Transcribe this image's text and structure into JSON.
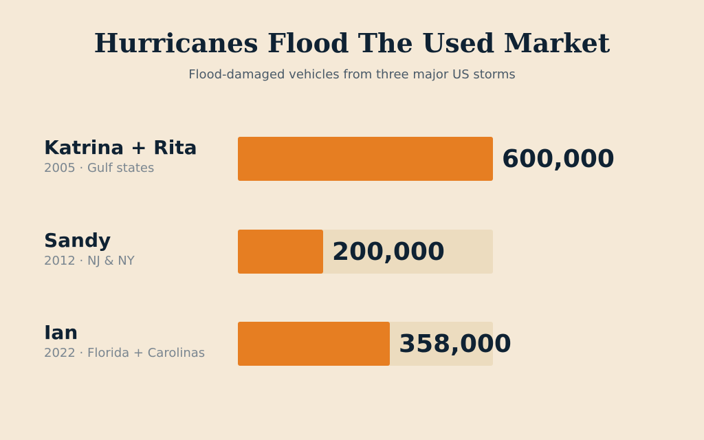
{
  "colors": {
    "background": "#f5e9d7",
    "bar": "#e67e22",
    "track": "#ecdcbf",
    "text_primary": "#0f2233",
    "text_secondary": "#7a8690"
  },
  "chart_data": {
    "type": "bar",
    "orientation": "horizontal",
    "title": "Hurricanes Flood The Used Market",
    "subtitle": "Flood-damaged vehicles from three major US storms",
    "xlabel": "",
    "ylabel": "",
    "xlim": [
      0,
      600000
    ],
    "grid": false,
    "legend": "none",
    "categories": [
      "Katrina + Rita",
      "Sandy",
      "Ian"
    ],
    "details": [
      "2005 · Gulf states",
      "2012 · NJ & NY",
      "2022 · Florida + Carolinas"
    ],
    "values": [
      600000,
      200000,
      358000
    ],
    "value_labels": [
      "600,000",
      "200,000",
      "358,000"
    ]
  }
}
